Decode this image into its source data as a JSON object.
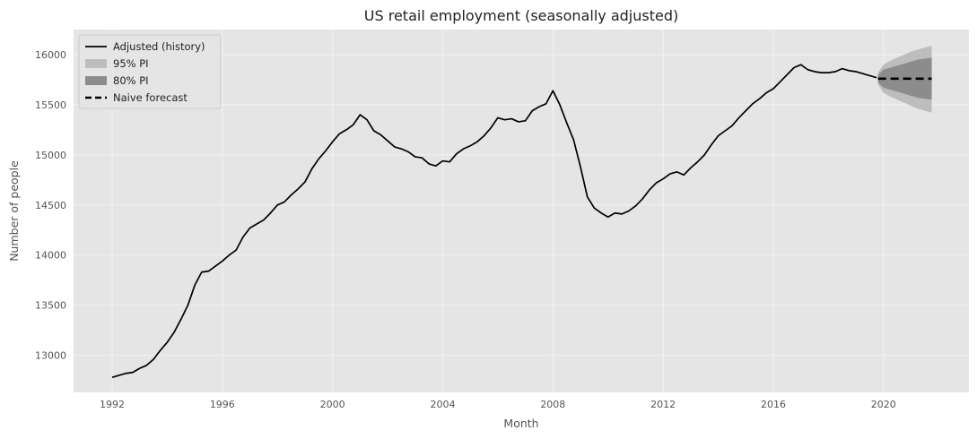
{
  "chart_data": {
    "type": "line",
    "title": "US retail employment (seasonally adjusted)",
    "xlabel": "Month",
    "ylabel": "Number of people",
    "xlim": [
      1990.6,
      2023.1
    ],
    "ylim": [
      12630,
      16250
    ],
    "x_ticks": [
      1992,
      1996,
      2000,
      2004,
      2008,
      2012,
      2016,
      2020
    ],
    "y_ticks": [
      13000,
      13500,
      14000,
      14500,
      15000,
      15500,
      16000
    ],
    "grid": true,
    "legend_position": "top-left",
    "legend": {
      "history": "Adjusted (history)",
      "pi95": "95% PI",
      "pi80": "80% PI",
      "naive": "Naive forecast"
    },
    "colors": {
      "background": "#e5e5e5",
      "grid": "#f2f2f2",
      "history": "#000000",
      "pi95": "#bdbdbd",
      "pi80": "#8c8c8c",
      "naive": "#000000"
    },
    "series": [
      {
        "name": "Adjusted (history)",
        "style": "solid",
        "points": [
          [
            1992.0,
            12780
          ],
          [
            1992.25,
            12800
          ],
          [
            1992.5,
            12820
          ],
          [
            1992.75,
            12830
          ],
          [
            1993.0,
            12870
          ],
          [
            1993.25,
            12900
          ],
          [
            1993.5,
            12960
          ],
          [
            1993.75,
            13050
          ],
          [
            1994.0,
            13130
          ],
          [
            1994.25,
            13230
          ],
          [
            1994.5,
            13360
          ],
          [
            1994.75,
            13500
          ],
          [
            1995.0,
            13700
          ],
          [
            1995.25,
            13830
          ],
          [
            1995.5,
            13840
          ],
          [
            1995.75,
            13890
          ],
          [
            1996.0,
            13940
          ],
          [
            1996.25,
            14000
          ],
          [
            1996.5,
            14050
          ],
          [
            1996.75,
            14180
          ],
          [
            1997.0,
            14270
          ],
          [
            1997.25,
            14310
          ],
          [
            1997.5,
            14350
          ],
          [
            1997.75,
            14420
          ],
          [
            1998.0,
            14500
          ],
          [
            1998.25,
            14530
          ],
          [
            1998.5,
            14600
          ],
          [
            1998.75,
            14660
          ],
          [
            1999.0,
            14730
          ],
          [
            1999.25,
            14860
          ],
          [
            1999.5,
            14960
          ],
          [
            1999.75,
            15040
          ],
          [
            2000.0,
            15130
          ],
          [
            2000.25,
            15210
          ],
          [
            2000.5,
            15250
          ],
          [
            2000.75,
            15300
          ],
          [
            2001.0,
            15400
          ],
          [
            2001.25,
            15350
          ],
          [
            2001.5,
            15240
          ],
          [
            2001.75,
            15200
          ],
          [
            2002.0,
            15140
          ],
          [
            2002.25,
            15080
          ],
          [
            2002.5,
            15060
          ],
          [
            2002.75,
            15030
          ],
          [
            2003.0,
            14980
          ],
          [
            2003.25,
            14970
          ],
          [
            2003.5,
            14910
          ],
          [
            2003.75,
            14890
          ],
          [
            2004.0,
            14940
          ],
          [
            2004.25,
            14930
          ],
          [
            2004.5,
            15010
          ],
          [
            2004.75,
            15060
          ],
          [
            2005.0,
            15090
          ],
          [
            2005.25,
            15130
          ],
          [
            2005.5,
            15190
          ],
          [
            2005.75,
            15270
          ],
          [
            2006.0,
            15370
          ],
          [
            2006.25,
            15350
          ],
          [
            2006.5,
            15360
          ],
          [
            2006.75,
            15330
          ],
          [
            2007.0,
            15340
          ],
          [
            2007.25,
            15440
          ],
          [
            2007.5,
            15480
          ],
          [
            2007.75,
            15510
          ],
          [
            2008.0,
            15640
          ],
          [
            2008.25,
            15500
          ],
          [
            2008.5,
            15320
          ],
          [
            2008.75,
            15150
          ],
          [
            2009.0,
            14880
          ],
          [
            2009.25,
            14580
          ],
          [
            2009.5,
            14470
          ],
          [
            2009.75,
            14420
          ],
          [
            2010.0,
            14380
          ],
          [
            2010.25,
            14420
          ],
          [
            2010.5,
            14410
          ],
          [
            2010.75,
            14440
          ],
          [
            2011.0,
            14490
          ],
          [
            2011.25,
            14560
          ],
          [
            2011.5,
            14650
          ],
          [
            2011.75,
            14720
          ],
          [
            2012.0,
            14760
          ],
          [
            2012.25,
            14810
          ],
          [
            2012.5,
            14830
          ],
          [
            2012.75,
            14800
          ],
          [
            2013.0,
            14870
          ],
          [
            2013.25,
            14930
          ],
          [
            2013.5,
            15000
          ],
          [
            2013.75,
            15100
          ],
          [
            2014.0,
            15190
          ],
          [
            2014.25,
            15240
          ],
          [
            2014.5,
            15290
          ],
          [
            2014.75,
            15370
          ],
          [
            2015.0,
            15440
          ],
          [
            2015.25,
            15510
          ],
          [
            2015.5,
            15560
          ],
          [
            2015.75,
            15620
          ],
          [
            2016.0,
            15660
          ],
          [
            2016.25,
            15730
          ],
          [
            2016.5,
            15800
          ],
          [
            2016.75,
            15870
          ],
          [
            2017.0,
            15900
          ],
          [
            2017.25,
            15850
          ],
          [
            2017.5,
            15830
          ],
          [
            2017.75,
            15820
          ],
          [
            2018.0,
            15820
          ],
          [
            2018.25,
            15830
          ],
          [
            2018.5,
            15860
          ],
          [
            2018.75,
            15840
          ],
          [
            2019.0,
            15830
          ],
          [
            2019.25,
            15810
          ],
          [
            2019.5,
            15790
          ],
          [
            2019.75,
            15770
          ]
        ]
      },
      {
        "name": "Naive forecast",
        "style": "dashed",
        "points": [
          [
            2019.8,
            15760
          ],
          [
            2021.75,
            15760
          ]
        ]
      }
    ],
    "bands": [
      {
        "name": "95% PI",
        "x": [
          2019.8,
          2020.0,
          2020.25,
          2020.5,
          2020.75,
          2021.0,
          2021.25,
          2021.5,
          2021.75
        ],
        "lower": [
          15700,
          15620,
          15580,
          15550,
          15520,
          15490,
          15460,
          15440,
          15420
        ],
        "upper": [
          15820,
          15900,
          15940,
          15970,
          16000,
          16030,
          16050,
          16070,
          16090
        ]
      },
      {
        "name": "80% PI",
        "x": [
          2019.8,
          2020.0,
          2020.25,
          2020.5,
          2020.75,
          2021.0,
          2021.25,
          2021.5,
          2021.75
        ],
        "lower": [
          15720,
          15670,
          15650,
          15630,
          15610,
          15590,
          15570,
          15560,
          15550
        ],
        "upper": [
          15800,
          15850,
          15870,
          15890,
          15910,
          15930,
          15950,
          15960,
          15970
        ]
      }
    ]
  }
}
